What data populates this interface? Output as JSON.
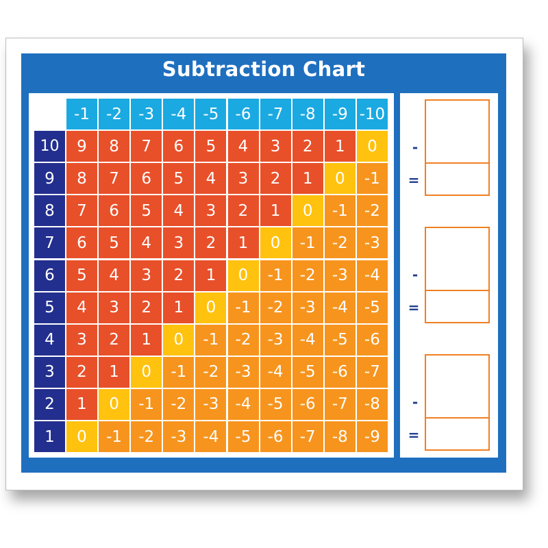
{
  "title": "Subtraction Chart",
  "column_headers": [
    "-1",
    "-2",
    "-3",
    "-4",
    "-5",
    "-6",
    "-7",
    "-8",
    "-9",
    "-10"
  ],
  "row_headers": [
    "10",
    "9",
    "8",
    "7",
    "6",
    "5",
    "4",
    "3",
    "2",
    "1"
  ],
  "cells": [
    [
      9,
      8,
      7,
      6,
      5,
      4,
      3,
      2,
      1,
      0
    ],
    [
      8,
      7,
      6,
      5,
      4,
      3,
      2,
      1,
      0,
      -1
    ],
    [
      7,
      6,
      5,
      4,
      3,
      2,
      1,
      0,
      -1,
      -2
    ],
    [
      6,
      5,
      4,
      3,
      2,
      1,
      0,
      -1,
      -2,
      -3
    ],
    [
      5,
      4,
      3,
      2,
      1,
      0,
      -1,
      -2,
      -3,
      -4
    ],
    [
      4,
      3,
      2,
      1,
      0,
      -1,
      -2,
      -3,
      -4,
      -5
    ],
    [
      3,
      2,
      1,
      0,
      -1,
      -2,
      -3,
      -4,
      -5,
      -6
    ],
    [
      2,
      1,
      0,
      -1,
      -2,
      -3,
      -4,
      -5,
      -6,
      -7
    ],
    [
      1,
      0,
      -1,
      -2,
      -3,
      -4,
      -5,
      -6,
      -7,
      -8
    ],
    [
      0,
      -1,
      -2,
      -3,
      -4,
      -5,
      -6,
      -7,
      -8,
      -9
    ]
  ],
  "worksheet": {
    "minus_symbol": "-",
    "equals_symbol": "=",
    "groups": 3
  },
  "colors": {
    "panel": "#1F6FBF",
    "column_header": "#1BA9E1",
    "row_header": "#232F8E",
    "positive": "#E8502A",
    "zero": "#FFC20E",
    "negative": "#F7941D",
    "box_border": "#F07F22"
  }
}
